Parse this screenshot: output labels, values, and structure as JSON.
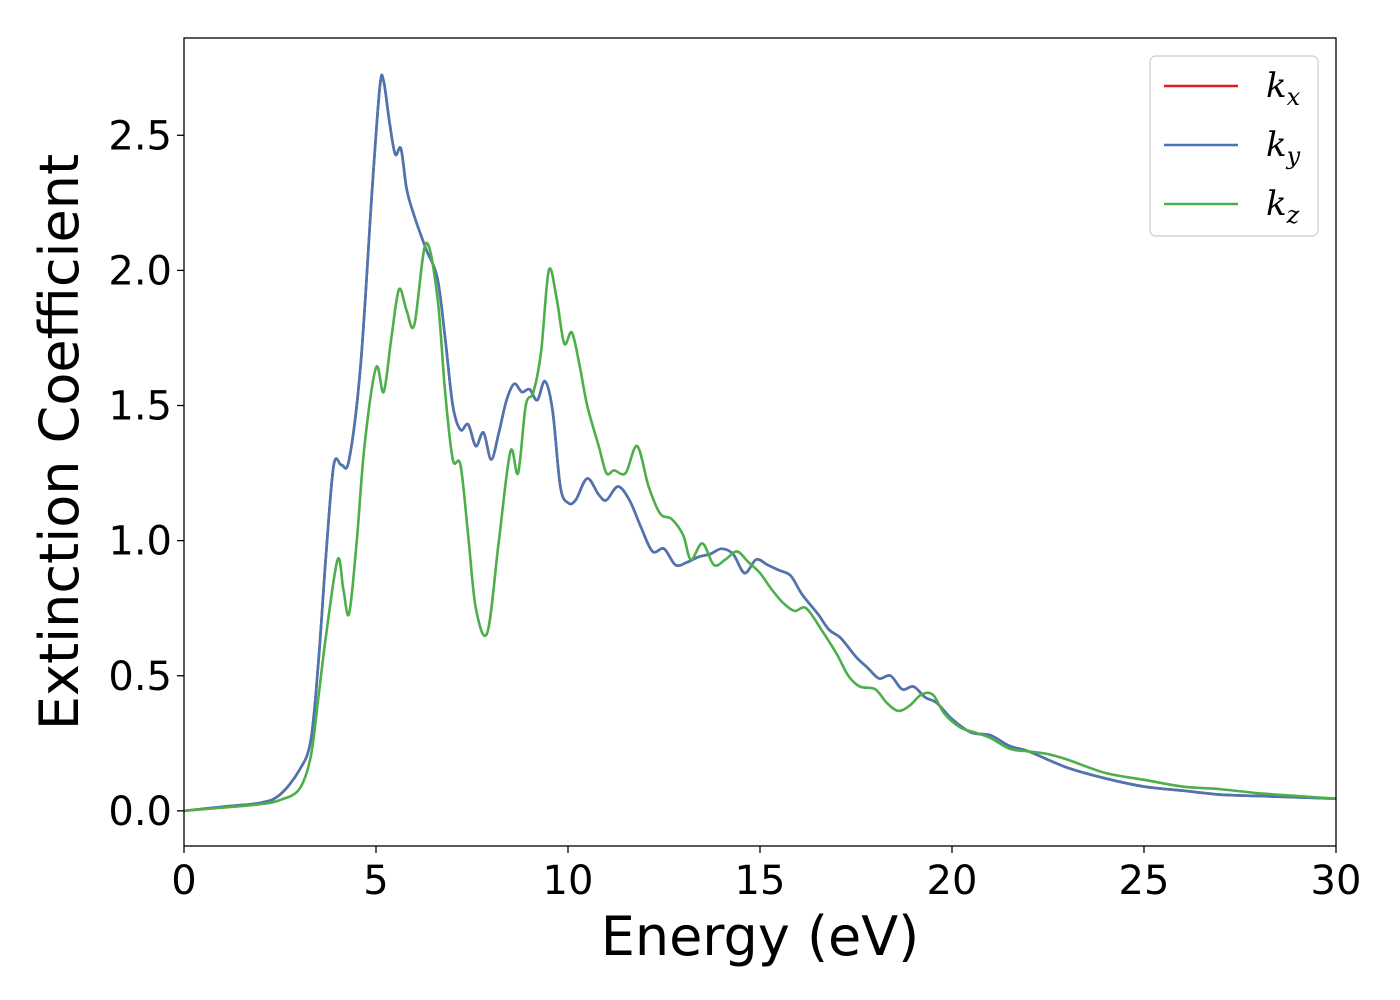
{
  "chart_data": {
    "type": "line",
    "title": "",
    "xlabel": "Energy (eV)",
    "ylabel": "Extinction Coefficient",
    "xlim": [
      0,
      30
    ],
    "ylim": [
      -0.13,
      2.86
    ],
    "xticks": [
      0,
      5,
      10,
      15,
      20,
      25,
      30
    ],
    "xtick_labels": [
      "0",
      "5",
      "10",
      "15",
      "20",
      "25",
      "30"
    ],
    "yticks": [
      0.0,
      0.5,
      1.0,
      1.5,
      2.0,
      2.5
    ],
    "ytick_labels": [
      "0.0",
      "0.5",
      "1.0",
      "1.5",
      "2.0",
      "2.5"
    ],
    "grid": false,
    "legend_position": "top-right",
    "series": [
      {
        "name": "k_x",
        "label_main": "k",
        "label_sub": "x",
        "color": "#e41a1c",
        "x": [
          0,
          1,
          2,
          2.5,
          3,
          3.3,
          3.5,
          3.7,
          3.9,
          4.1,
          4.3,
          4.6,
          4.9,
          5.1,
          5.2,
          5.35,
          5.5,
          5.65,
          5.8,
          6.0,
          6.3,
          6.6,
          6.8,
          7.0,
          7.2,
          7.4,
          7.6,
          7.8,
          8.0,
          8.2,
          8.4,
          8.6,
          8.8,
          9.0,
          9.2,
          9.4,
          9.6,
          9.8,
          10.0,
          10.2,
          10.5,
          10.8,
          11.0,
          11.3,
          11.6,
          11.9,
          12.2,
          12.5,
          12.8,
          13.1,
          13.4,
          13.7,
          14.0,
          14.3,
          14.6,
          14.9,
          15.2,
          15.5,
          15.8,
          16.1,
          16.5,
          16.8,
          17.1,
          17.5,
          17.8,
          18.1,
          18.4,
          18.7,
          19.0,
          19.3,
          19.6,
          20.0,
          20.5,
          21.0,
          21.5,
          22.0,
          23.0,
          24.0,
          25.0,
          26.0,
          27.0,
          28.0,
          29.0,
          30.0
        ],
        "values": [
          0.0,
          0.015,
          0.03,
          0.06,
          0.15,
          0.26,
          0.55,
          0.95,
          1.28,
          1.28,
          1.3,
          1.65,
          2.3,
          2.68,
          2.7,
          2.55,
          2.43,
          2.45,
          2.3,
          2.2,
          2.08,
          1.97,
          1.75,
          1.5,
          1.41,
          1.43,
          1.35,
          1.4,
          1.3,
          1.4,
          1.52,
          1.58,
          1.55,
          1.56,
          1.52,
          1.59,
          1.48,
          1.2,
          1.14,
          1.15,
          1.23,
          1.17,
          1.15,
          1.2,
          1.15,
          1.05,
          0.96,
          0.97,
          0.91,
          0.92,
          0.94,
          0.95,
          0.97,
          0.95,
          0.88,
          0.93,
          0.91,
          0.89,
          0.87,
          0.8,
          0.73,
          0.67,
          0.64,
          0.57,
          0.53,
          0.49,
          0.5,
          0.45,
          0.46,
          0.42,
          0.4,
          0.34,
          0.29,
          0.28,
          0.24,
          0.22,
          0.16,
          0.12,
          0.09,
          0.075,
          0.06,
          0.055,
          0.05,
          0.045
        ]
      },
      {
        "name": "k_y",
        "label_main": "k",
        "label_sub": "y",
        "color": "#4a77b4",
        "x": [
          0,
          1,
          2,
          2.5,
          3,
          3.3,
          3.5,
          3.7,
          3.9,
          4.1,
          4.3,
          4.6,
          4.9,
          5.1,
          5.2,
          5.35,
          5.5,
          5.65,
          5.8,
          6.0,
          6.3,
          6.6,
          6.8,
          7.0,
          7.2,
          7.4,
          7.6,
          7.8,
          8.0,
          8.2,
          8.4,
          8.6,
          8.8,
          9.0,
          9.2,
          9.4,
          9.6,
          9.8,
          10.0,
          10.2,
          10.5,
          10.8,
          11.0,
          11.3,
          11.6,
          11.9,
          12.2,
          12.5,
          12.8,
          13.1,
          13.4,
          13.7,
          14.0,
          14.3,
          14.6,
          14.9,
          15.2,
          15.5,
          15.8,
          16.1,
          16.5,
          16.8,
          17.1,
          17.5,
          17.8,
          18.1,
          18.4,
          18.7,
          19.0,
          19.3,
          19.6,
          20.0,
          20.5,
          21.0,
          21.5,
          22.0,
          23.0,
          24.0,
          25.0,
          26.0,
          27.0,
          28.0,
          29.0,
          30.0
        ],
        "values": [
          0.0,
          0.015,
          0.03,
          0.06,
          0.15,
          0.26,
          0.55,
          0.95,
          1.28,
          1.28,
          1.3,
          1.65,
          2.3,
          2.68,
          2.7,
          2.55,
          2.43,
          2.45,
          2.3,
          2.2,
          2.08,
          1.97,
          1.75,
          1.5,
          1.41,
          1.43,
          1.35,
          1.4,
          1.3,
          1.4,
          1.52,
          1.58,
          1.55,
          1.56,
          1.52,
          1.59,
          1.48,
          1.2,
          1.14,
          1.15,
          1.23,
          1.17,
          1.15,
          1.2,
          1.15,
          1.05,
          0.96,
          0.97,
          0.91,
          0.92,
          0.94,
          0.95,
          0.97,
          0.95,
          0.88,
          0.93,
          0.91,
          0.89,
          0.87,
          0.8,
          0.73,
          0.67,
          0.64,
          0.57,
          0.53,
          0.49,
          0.5,
          0.45,
          0.46,
          0.42,
          0.4,
          0.34,
          0.29,
          0.28,
          0.24,
          0.22,
          0.16,
          0.12,
          0.09,
          0.075,
          0.06,
          0.055,
          0.05,
          0.045
        ]
      },
      {
        "name": "k_z",
        "label_main": "k",
        "label_sub": "z",
        "color": "#4daf4a",
        "x": [
          0,
          1,
          2,
          2.5,
          3,
          3.3,
          3.5,
          3.7,
          4.0,
          4.15,
          4.3,
          4.5,
          4.7,
          5.0,
          5.2,
          5.4,
          5.6,
          5.8,
          6.0,
          6.3,
          6.6,
          6.8,
          7.0,
          7.2,
          7.4,
          7.6,
          7.9,
          8.2,
          8.5,
          8.7,
          8.9,
          9.1,
          9.3,
          9.5,
          9.7,
          9.9,
          10.1,
          10.3,
          10.5,
          10.8,
          11.0,
          11.2,
          11.5,
          11.8,
          12.1,
          12.4,
          12.7,
          13.0,
          13.2,
          13.5,
          13.8,
          14.1,
          14.4,
          14.7,
          15.0,
          15.3,
          15.6,
          15.9,
          16.2,
          16.6,
          17.0,
          17.3,
          17.6,
          18.0,
          18.3,
          18.6,
          18.9,
          19.2,
          19.5,
          19.8,
          20.2,
          20.6,
          21.0,
          21.5,
          22.0,
          22.5,
          23.0,
          24.0,
          25.0,
          26.0,
          27.0,
          28.0,
          29.0,
          30.0
        ],
        "values": [
          0.0,
          0.012,
          0.025,
          0.04,
          0.08,
          0.2,
          0.42,
          0.65,
          0.93,
          0.82,
          0.73,
          1.0,
          1.35,
          1.64,
          1.55,
          1.75,
          1.93,
          1.85,
          1.8,
          2.1,
          1.9,
          1.55,
          1.3,
          1.28,
          1.02,
          0.75,
          0.66,
          1.0,
          1.33,
          1.25,
          1.5,
          1.55,
          1.7,
          2.0,
          1.9,
          1.73,
          1.77,
          1.65,
          1.5,
          1.35,
          1.25,
          1.26,
          1.25,
          1.35,
          1.2,
          1.1,
          1.08,
          1.02,
          0.93,
          0.99,
          0.91,
          0.93,
          0.96,
          0.92,
          0.88,
          0.82,
          0.77,
          0.74,
          0.75,
          0.67,
          0.58,
          0.5,
          0.46,
          0.45,
          0.4,
          0.37,
          0.39,
          0.43,
          0.43,
          0.36,
          0.31,
          0.29,
          0.27,
          0.23,
          0.22,
          0.21,
          0.19,
          0.14,
          0.115,
          0.09,
          0.08,
          0.065,
          0.055,
          0.045
        ]
      }
    ]
  }
}
